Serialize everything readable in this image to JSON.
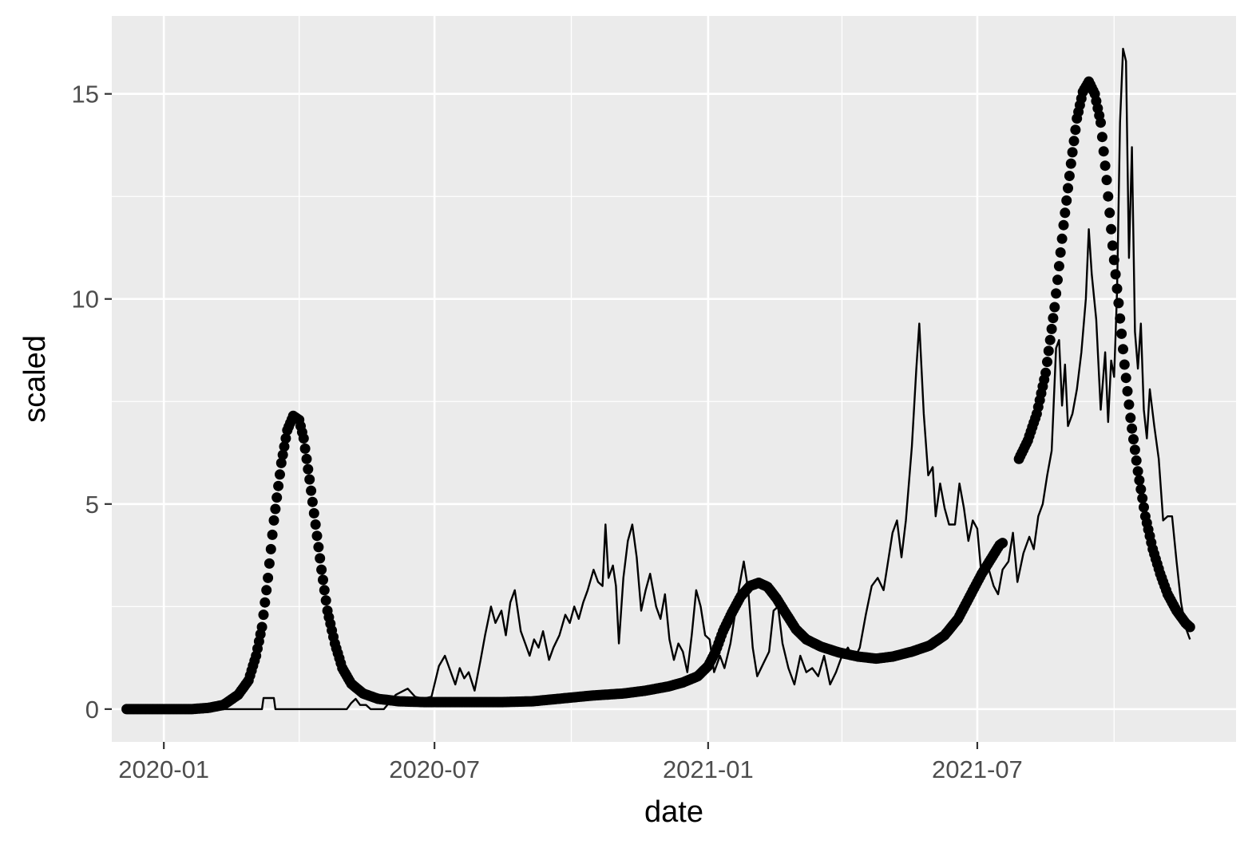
{
  "chart_data": {
    "type": "line",
    "title": "",
    "xlabel": "date",
    "ylabel": "scaled",
    "x_ticks": [
      "2020-01",
      "2020-07",
      "2021-01",
      "2021-07"
    ],
    "y_ticks": [
      0,
      5,
      10,
      15
    ],
    "xlim": [
      "2019-11-27",
      "2021-12-22"
    ],
    "ylim": [
      -0.8,
      16.9
    ],
    "grid": true,
    "panel_background": "#ebebeb",
    "grid_color": "#ffffff",
    "series": [
      {
        "style": "line",
        "color": "#000000",
        "points": [
          [
            "2019-12-07",
            0
          ],
          [
            "2020-03-07",
            0
          ],
          [
            "2020-03-08",
            0.27
          ],
          [
            "2020-03-15",
            0.27
          ],
          [
            "2020-03-16",
            0
          ],
          [
            "2020-05-03",
            0
          ],
          [
            "2020-05-06",
            0.15
          ],
          [
            "2020-05-09",
            0.25
          ],
          [
            "2020-05-12",
            0.1
          ],
          [
            "2020-05-16",
            0.1
          ],
          [
            "2020-05-19",
            0
          ],
          [
            "2020-05-28",
            0
          ],
          [
            "2020-06-05",
            0.35
          ],
          [
            "2020-06-13",
            0.5
          ],
          [
            "2020-06-18",
            0.3
          ],
          [
            "2020-06-23",
            0.25
          ],
          [
            "2020-06-29",
            0.3
          ],
          [
            "2020-07-04",
            1.05
          ],
          [
            "2020-07-08",
            1.3
          ],
          [
            "2020-07-12",
            0.9
          ],
          [
            "2020-07-15",
            0.6
          ],
          [
            "2020-07-18",
            1.0
          ],
          [
            "2020-07-21",
            0.75
          ],
          [
            "2020-07-24",
            0.9
          ],
          [
            "2020-07-28",
            0.45
          ],
          [
            "2020-08-01",
            1.2
          ],
          [
            "2020-08-04",
            1.8
          ],
          [
            "2020-08-08",
            2.5
          ],
          [
            "2020-08-11",
            2.1
          ],
          [
            "2020-08-15",
            2.4
          ],
          [
            "2020-08-18",
            1.8
          ],
          [
            "2020-08-21",
            2.6
          ],
          [
            "2020-08-24",
            2.9
          ],
          [
            "2020-08-28",
            1.9
          ],
          [
            "2020-08-31",
            1.6
          ],
          [
            "2020-09-03",
            1.3
          ],
          [
            "2020-09-06",
            1.7
          ],
          [
            "2020-09-09",
            1.5
          ],
          [
            "2020-09-12",
            1.9
          ],
          [
            "2020-09-16",
            1.2
          ],
          [
            "2020-09-19",
            1.5
          ],
          [
            "2020-09-23",
            1.8
          ],
          [
            "2020-09-27",
            2.3
          ],
          [
            "2020-09-30",
            2.1
          ],
          [
            "2020-10-03",
            2.5
          ],
          [
            "2020-10-06",
            2.2
          ],
          [
            "2020-10-09",
            2.6
          ],
          [
            "2020-10-12",
            2.9
          ],
          [
            "2020-10-16",
            3.4
          ],
          [
            "2020-10-19",
            3.1
          ],
          [
            "2020-10-22",
            3.0
          ],
          [
            "2020-10-24",
            4.5
          ],
          [
            "2020-10-26",
            3.2
          ],
          [
            "2020-10-29",
            3.5
          ],
          [
            "2020-10-31",
            3.0
          ],
          [
            "2020-11-02",
            1.6
          ],
          [
            "2020-11-05",
            3.2
          ],
          [
            "2020-11-08",
            4.1
          ],
          [
            "2020-11-11",
            4.5
          ],
          [
            "2020-11-14",
            3.7
          ],
          [
            "2020-11-17",
            2.4
          ],
          [
            "2020-11-20",
            2.9
          ],
          [
            "2020-11-23",
            3.3
          ],
          [
            "2020-11-27",
            2.5
          ],
          [
            "2020-11-30",
            2.2
          ],
          [
            "2020-12-03",
            2.8
          ],
          [
            "2020-12-06",
            1.7
          ],
          [
            "2020-12-09",
            1.2
          ],
          [
            "2020-12-12",
            1.6
          ],
          [
            "2020-12-15",
            1.4
          ],
          [
            "2020-12-18",
            0.9
          ],
          [
            "2020-12-21",
            1.8
          ],
          [
            "2020-12-24",
            2.9
          ],
          [
            "2020-12-27",
            2.5
          ],
          [
            "2020-12-30",
            1.8
          ],
          [
            "2021-01-02",
            1.7
          ],
          [
            "2021-01-05",
            0.9
          ],
          [
            "2021-01-09",
            1.3
          ],
          [
            "2021-01-12",
            1.0
          ],
          [
            "2021-01-16",
            1.6
          ],
          [
            "2021-01-19",
            2.3
          ],
          [
            "2021-01-22",
            3.0
          ],
          [
            "2021-01-25",
            3.6
          ],
          [
            "2021-01-28",
            2.9
          ],
          [
            "2021-01-31",
            1.5
          ],
          [
            "2021-02-03",
            0.8
          ],
          [
            "2021-02-07",
            1.1
          ],
          [
            "2021-02-11",
            1.4
          ],
          [
            "2021-02-14",
            2.4
          ],
          [
            "2021-02-17",
            2.5
          ],
          [
            "2021-02-20",
            1.6
          ],
          [
            "2021-02-24",
            1.0
          ],
          [
            "2021-02-28",
            0.6
          ],
          [
            "2021-03-04",
            1.3
          ],
          [
            "2021-03-08",
            0.9
          ],
          [
            "2021-03-12",
            1.0
          ],
          [
            "2021-03-16",
            0.8
          ],
          [
            "2021-03-20",
            1.3
          ],
          [
            "2021-03-24",
            0.6
          ],
          [
            "2021-03-28",
            0.9
          ],
          [
            "2021-04-01",
            1.3
          ],
          [
            "2021-04-05",
            1.5
          ],
          [
            "2021-04-09",
            1.2
          ],
          [
            "2021-04-13",
            1.5
          ],
          [
            "2021-04-17",
            2.3
          ],
          [
            "2021-04-21",
            3.0
          ],
          [
            "2021-04-25",
            3.2
          ],
          [
            "2021-04-29",
            2.9
          ],
          [
            "2021-05-02",
            3.6
          ],
          [
            "2021-05-05",
            4.3
          ],
          [
            "2021-05-08",
            4.6
          ],
          [
            "2021-05-11",
            3.7
          ],
          [
            "2021-05-14",
            4.6
          ],
          [
            "2021-05-18",
            6.4
          ],
          [
            "2021-05-21",
            8.3
          ],
          [
            "2021-05-23",
            9.4
          ],
          [
            "2021-05-26",
            7.2
          ],
          [
            "2021-05-29",
            5.7
          ],
          [
            "2021-06-01",
            5.9
          ],
          [
            "2021-06-03",
            4.7
          ],
          [
            "2021-06-06",
            5.5
          ],
          [
            "2021-06-09",
            4.9
          ],
          [
            "2021-06-12",
            4.5
          ],
          [
            "2021-06-16",
            4.5
          ],
          [
            "2021-06-19",
            5.5
          ],
          [
            "2021-06-22",
            4.9
          ],
          [
            "2021-06-25",
            4.1
          ],
          [
            "2021-06-28",
            4.6
          ],
          [
            "2021-07-01",
            4.4
          ],
          [
            "2021-07-04",
            3.2
          ],
          [
            "2021-07-08",
            3.5
          ],
          [
            "2021-07-12",
            3.0
          ],
          [
            "2021-07-15",
            2.8
          ],
          [
            "2021-07-18",
            3.4
          ],
          [
            "2021-07-22",
            3.6
          ],
          [
            "2021-07-25",
            4.3
          ],
          [
            "2021-07-28",
            3.1
          ],
          [
            "2021-08-01",
            3.8
          ],
          [
            "2021-08-05",
            4.2
          ],
          [
            "2021-08-08",
            3.9
          ],
          [
            "2021-08-11",
            4.7
          ],
          [
            "2021-08-14",
            5.0
          ],
          [
            "2021-08-17",
            5.7
          ],
          [
            "2021-08-20",
            6.3
          ],
          [
            "2021-08-23",
            8.8
          ],
          [
            "2021-08-25",
            9.0
          ],
          [
            "2021-08-27",
            7.4
          ],
          [
            "2021-08-29",
            8.4
          ],
          [
            "2021-08-31",
            6.9
          ],
          [
            "2021-09-03",
            7.2
          ],
          [
            "2021-09-06",
            7.8
          ],
          [
            "2021-09-09",
            8.7
          ],
          [
            "2021-09-12",
            10.0
          ],
          [
            "2021-09-14",
            11.7
          ],
          [
            "2021-09-16",
            10.6
          ],
          [
            "2021-09-19",
            9.5
          ],
          [
            "2021-09-22",
            7.3
          ],
          [
            "2021-09-25",
            8.7
          ],
          [
            "2021-09-27",
            7.0
          ],
          [
            "2021-09-29",
            8.5
          ],
          [
            "2021-10-01",
            8.1
          ],
          [
            "2021-10-03",
            10.2
          ],
          [
            "2021-10-05",
            14.3
          ],
          [
            "2021-10-07",
            16.1
          ],
          [
            "2021-10-09",
            15.8
          ],
          [
            "2021-10-11",
            11.0
          ],
          [
            "2021-10-13",
            13.7
          ],
          [
            "2021-10-15",
            9.2
          ],
          [
            "2021-10-17",
            8.3
          ],
          [
            "2021-10-19",
            9.4
          ],
          [
            "2021-10-21",
            7.3
          ],
          [
            "2021-10-23",
            6.6
          ],
          [
            "2021-10-25",
            7.8
          ],
          [
            "2021-10-28",
            6.9
          ],
          [
            "2021-10-31",
            6.1
          ],
          [
            "2021-11-03",
            4.6
          ],
          [
            "2021-11-06",
            4.7
          ],
          [
            "2021-11-09",
            4.7
          ],
          [
            "2021-11-12",
            3.6
          ],
          [
            "2021-11-15",
            2.6
          ],
          [
            "2021-11-18",
            2.0
          ],
          [
            "2021-11-21",
            1.7
          ]
        ]
      },
      {
        "style": "points",
        "color": "#000000",
        "points": [
          [
            "2019-12-07",
            0
          ],
          [
            "2020-01-20",
            0
          ],
          [
            "2020-01-31",
            0.03
          ],
          [
            "2020-02-10",
            0.1
          ],
          [
            "2020-02-20",
            0.35
          ],
          [
            "2020-02-27",
            0.7
          ],
          [
            "2020-03-03",
            1.3
          ],
          [
            "2020-03-07",
            2.0
          ],
          [
            "2020-03-11",
            3.2
          ],
          [
            "2020-03-15",
            4.6
          ],
          [
            "2020-03-20",
            6.0
          ],
          [
            "2020-03-24",
            6.8
          ],
          [
            "2020-03-28",
            7.15
          ],
          [
            "2020-04-01",
            7.05
          ],
          [
            "2020-04-04",
            6.6
          ],
          [
            "2020-04-08",
            5.6
          ],
          [
            "2020-04-12",
            4.5
          ],
          [
            "2020-04-16",
            3.4
          ],
          [
            "2020-04-20",
            2.4
          ],
          [
            "2020-04-25",
            1.6
          ],
          [
            "2020-04-30",
            1.0
          ],
          [
            "2020-05-06",
            0.62
          ],
          [
            "2020-05-14",
            0.38
          ],
          [
            "2020-05-24",
            0.25
          ],
          [
            "2020-06-07",
            0.19
          ],
          [
            "2020-06-25",
            0.17
          ],
          [
            "2020-07-20",
            0.17
          ],
          [
            "2020-08-15",
            0.17
          ],
          [
            "2020-09-05",
            0.19
          ],
          [
            "2020-09-25",
            0.26
          ],
          [
            "2020-10-15",
            0.33
          ],
          [
            "2020-11-05",
            0.38
          ],
          [
            "2020-11-20",
            0.45
          ],
          [
            "2020-12-05",
            0.55
          ],
          [
            "2020-12-15",
            0.65
          ],
          [
            "2020-12-25",
            0.8
          ],
          [
            "2021-01-01",
            1.05
          ],
          [
            "2021-01-06",
            1.4
          ],
          [
            "2021-01-11",
            1.9
          ],
          [
            "2021-01-17",
            2.35
          ],
          [
            "2021-01-23",
            2.75
          ],
          [
            "2021-01-29",
            3.0
          ],
          [
            "2021-02-04",
            3.08
          ],
          [
            "2021-02-10",
            2.98
          ],
          [
            "2021-02-16",
            2.7
          ],
          [
            "2021-02-22",
            2.35
          ],
          [
            "2021-03-01",
            1.95
          ],
          [
            "2021-03-08",
            1.7
          ],
          [
            "2021-03-18",
            1.52
          ],
          [
            "2021-03-30",
            1.38
          ],
          [
            "2021-04-12",
            1.28
          ],
          [
            "2021-04-24",
            1.23
          ],
          [
            "2021-05-05",
            1.28
          ],
          [
            "2021-05-18",
            1.4
          ],
          [
            "2021-05-30",
            1.55
          ],
          [
            "2021-06-09",
            1.8
          ],
          [
            "2021-06-18",
            2.2
          ],
          [
            "2021-06-26",
            2.75
          ],
          [
            "2021-07-04",
            3.3
          ],
          [
            "2021-07-10",
            3.65
          ],
          [
            "2021-07-16",
            4.0
          ],
          [
            "2021-07-18",
            4.05
          ],
          null,
          [
            "2021-07-29",
            6.1
          ],
          [
            "2021-08-04",
            6.55
          ],
          [
            "2021-08-10",
            7.2
          ],
          [
            "2021-08-16",
            8.2
          ],
          [
            "2021-08-22",
            9.8
          ],
          [
            "2021-08-28",
            11.8
          ],
          [
            "2021-09-02",
            13.3
          ],
          [
            "2021-09-06",
            14.4
          ],
          [
            "2021-09-10",
            15.05
          ],
          [
            "2021-09-14",
            15.3
          ],
          [
            "2021-09-18",
            15.0
          ],
          [
            "2021-09-22",
            14.3
          ],
          [
            "2021-09-26",
            12.9
          ],
          [
            "2021-09-30",
            11.3
          ],
          [
            "2021-10-04",
            9.9
          ],
          [
            "2021-10-08",
            8.4
          ],
          [
            "2021-10-12",
            7.1
          ],
          [
            "2021-10-17",
            5.8
          ],
          [
            "2021-10-22",
            4.7
          ],
          [
            "2021-10-27",
            3.9
          ],
          [
            "2021-11-01",
            3.3
          ],
          [
            "2021-11-06",
            2.8
          ],
          [
            "2021-11-12",
            2.4
          ],
          [
            "2021-11-18",
            2.1
          ],
          [
            "2021-11-21",
            2.0
          ]
        ]
      }
    ]
  }
}
